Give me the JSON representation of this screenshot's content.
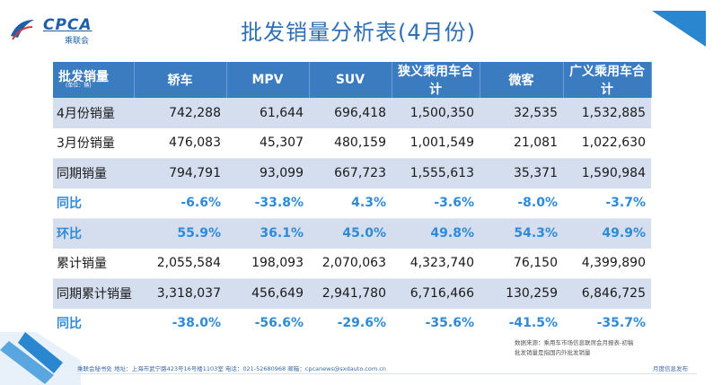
{
  "logo": {
    "text": "CPCA",
    "sub": "乘联会"
  },
  "title": "批发销量分析表(4月份)",
  "table": {
    "corner_main": "批发销量",
    "corner_unit": "(单位：辆)",
    "headers": [
      "轿车",
      "MPV",
      "SUV",
      "狭义乘用车合计",
      "微客",
      "广义乘用车合计"
    ],
    "rows": [
      {
        "label": "4月份销量",
        "values": [
          "742,288",
          "61,644",
          "696,418",
          "1,500,350",
          "32,535",
          "1,532,885"
        ]
      },
      {
        "label": "3月份销量",
        "values": [
          "476,083",
          "45,307",
          "480,159",
          "1,001,549",
          "21,081",
          "1,022,630"
        ]
      },
      {
        "label": "同期销量",
        "values": [
          "794,791",
          "93,099",
          "667,723",
          "1,555,613",
          "35,371",
          "1,590,984"
        ]
      },
      {
        "label": "同比",
        "values": [
          "-6.6%",
          "-33.8%",
          "4.3%",
          "-3.6%",
          "-8.0%",
          "-3.7%"
        ]
      },
      {
        "label": "环比",
        "values": [
          "55.9%",
          "36.1%",
          "45.0%",
          "49.8%",
          "54.3%",
          "49.9%"
        ]
      },
      {
        "label": "累计销量",
        "values": [
          "2,055,584",
          "198,093",
          "2,070,063",
          "4,323,740",
          "76,150",
          "4,399,890"
        ]
      },
      {
        "label": "同期累计销量",
        "values": [
          "3,318,037",
          "456,649",
          "2,941,780",
          "6,716,466",
          "130,259",
          "6,846,725"
        ]
      },
      {
        "label": "同比",
        "values": [
          "-38.0%",
          "-56.6%",
          "-29.6%",
          "-35.6%",
          "-41.5%",
          "-35.7%"
        ]
      }
    ]
  },
  "source_note": {
    "line1": "数据来源：乘用车市场信息联席会月报表-初稿",
    "line2": "批发销量是指国内外批发销量"
  },
  "footer": {
    "left": "乘联会秘书处  地址：上海市武宁路423号16号楼1103室  电话：021-52680968  邮箱：cpcanews@sxdauto.com.cn",
    "right": "月度信息发布"
  },
  "colors": {
    "header_bg": "#3b7bbf",
    "band_bg": "#d5deee",
    "pct_text": "#2f8ad8",
    "title_text": "#2f6fb5"
  }
}
